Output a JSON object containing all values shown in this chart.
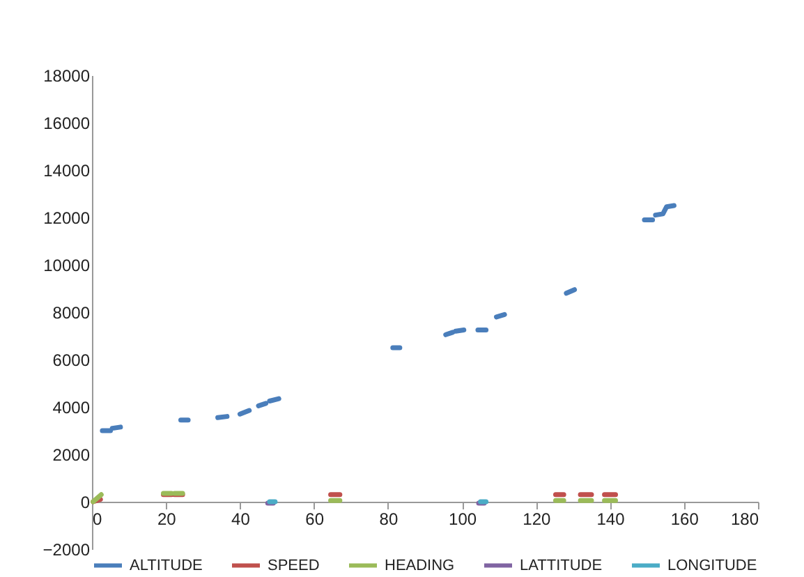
{
  "chart_data": {
    "type": "line",
    "legend": "bottom",
    "grid": false,
    "marker": "none",
    "line_style": "solid",
    "xlim": [
      0,
      180
    ],
    "xticks": [
      0,
      20,
      40,
      60,
      80,
      100,
      120,
      140,
      160,
      180
    ],
    "ylim": [
      -2000,
      18000
    ],
    "yticks": [
      -2000,
      0,
      2000,
      4000,
      6000,
      8000,
      10000,
      12000,
      14000,
      16000,
      18000
    ],
    "series": [
      {
        "name": "ALTITUDE",
        "color": "#4a7ebb",
        "x": [
          2.8,
          5,
          null,
          5.5,
          7.7,
          null,
          24,
          26,
          null,
          34,
          36.5,
          null,
          40,
          42.5,
          null,
          45,
          47,
          null,
          48,
          50.5,
          null,
          81.3,
          83.2,
          null,
          95.6,
          97.5,
          null,
          98.3,
          100.5,
          null,
          104.3,
          106.5,
          null,
          109.3,
          111.5,
          null,
          128.2,
          130.4,
          null,
          149.3,
          151.5,
          null,
          152.3,
          154.3,
          155.3,
          157.3
        ],
        "values": [
          3000,
          3000,
          null,
          3100,
          3150,
          null,
          3450,
          3450,
          null,
          3550,
          3600,
          null,
          3700,
          3850,
          null,
          4050,
          4150,
          null,
          4250,
          4350,
          null,
          6500,
          6500,
          null,
          7050,
          7150,
          null,
          7200,
          7250,
          null,
          7250,
          7250,
          null,
          7800,
          7900,
          null,
          8800,
          8950,
          null,
          11900,
          11900,
          null,
          12100,
          12150,
          12450,
          12500
        ]
      },
      {
        "name": "SPEED",
        "color": "#c0504d",
        "x": [
          0.3,
          2.3,
          null,
          19.3,
          21.5,
          null,
          22.3,
          24.5,
          null,
          64.5,
          67,
          null,
          125.3,
          127.5,
          null,
          132,
          135,
          null,
          138.5,
          141.5
        ],
        "values": [
          0,
          100,
          null,
          300,
          300,
          null,
          300,
          300,
          null,
          300,
          300,
          null,
          300,
          300,
          null,
          300,
          300,
          null,
          300,
          300
        ]
      },
      {
        "name": "HEADING",
        "color": "#9bbb59",
        "x": [
          0.3,
          2.5,
          null,
          19.3,
          21.5,
          null,
          22.3,
          24.5,
          null,
          64.5,
          67,
          null,
          125.3,
          127.5,
          null,
          132,
          135,
          null,
          138.5,
          141.5
        ],
        "values": [
          0,
          300,
          null,
          350,
          350,
          null,
          350,
          350,
          null,
          50,
          50,
          null,
          50,
          50,
          null,
          50,
          50,
          null,
          50,
          50
        ]
      },
      {
        "name": "LATTITUDE",
        "color": "#8064a2",
        "x": [
          47.5,
          49,
          null,
          104.5,
          106
        ],
        "values": [
          -60,
          -60,
          null,
          -60,
          -60
        ]
      },
      {
        "name": "LONGITUDE",
        "color": "#4bacc6",
        "x": [
          48,
          49.5,
          null,
          105,
          106.5
        ],
        "values": [
          0,
          0,
          null,
          0,
          0
        ]
      }
    ]
  }
}
